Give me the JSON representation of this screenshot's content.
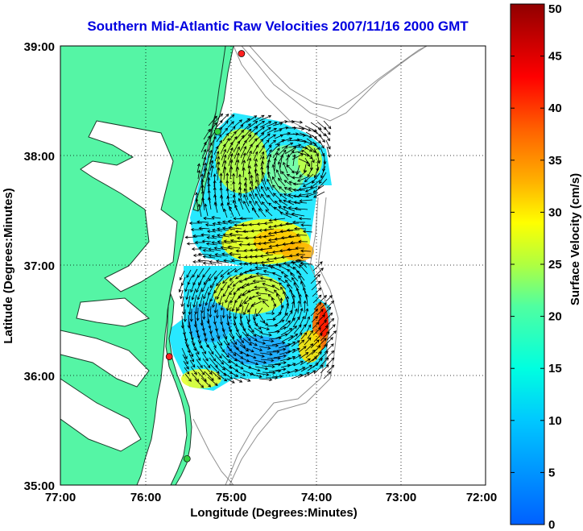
{
  "title": "Southern Mid-Atlantic Raw Velocities 2007/11/16 2000 GMT",
  "xlabel": "Longitude (Degrees:Minutes)",
  "ylabel": "Latitude (Degrees:Minutes)",
  "x_ticks": [
    "77:00",
    "76:00",
    "75:00",
    "74:00",
    "73:00",
    "72:00"
  ],
  "y_ticks": [
    "39:00",
    "38:00",
    "37:00",
    "36:00",
    "35:00"
  ],
  "colorbar": {
    "label": "Surface Velocity (cm/s)",
    "ticks": [
      "0",
      "5",
      "10",
      "15",
      "20",
      "25",
      "30",
      "35",
      "40",
      "45",
      "50"
    ],
    "min": 0,
    "max": 50,
    "colormap": "jet"
  },
  "colors": {
    "title": "#0000e0",
    "land": "#55f5a5",
    "coast": "#1a3d2a",
    "bathymetry": "#909090",
    "vector": "#000000"
  },
  "chart_data": {
    "type": "map",
    "map_extent": {
      "lon_west": -77,
      "lon_east": -72,
      "lat_south": 35,
      "lat_north": 39
    },
    "grid": true,
    "stations": [
      {
        "lon": -74.87,
        "lat": 38.93,
        "color": "#ff2020"
      },
      {
        "lon": -75.15,
        "lat": 38.22,
        "color": "#30d040"
      },
      {
        "lon": -75.72,
        "lat": 36.17,
        "color": "#ff2020"
      },
      {
        "lon": -75.51,
        "lat": 35.24,
        "color": "#30d040"
      }
    ],
    "velocity_hotspots": [
      {
        "lon": -74.98,
        "lat": 37.72,
        "speed": 23
      },
      {
        "lon": -74.65,
        "lat": 37.18,
        "speed": 28
      },
      {
        "lon": -74.45,
        "lat": 37.05,
        "speed": 26
      },
      {
        "lon": -74.75,
        "lat": 36.72,
        "speed": 24
      },
      {
        "lon": -73.98,
        "lat": 36.55,
        "speed": 40
      },
      {
        "lon": -75.05,
        "lat": 36.3,
        "speed": 14
      }
    ]
  }
}
